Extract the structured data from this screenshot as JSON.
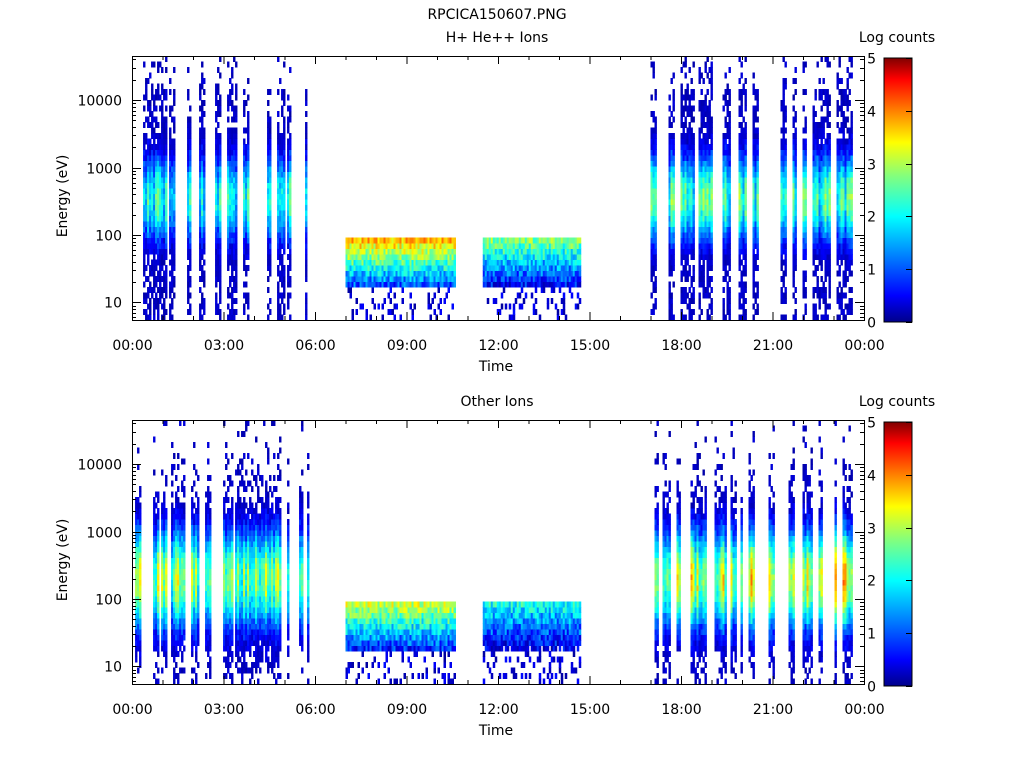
{
  "chart_data": {
    "type": "heatmap",
    "title": "RPCICA150607.PNG",
    "colormap": [
      "#00008b",
      "#0000ff",
      "#0080ff",
      "#00ffff",
      "#80ff80",
      "#ffff00",
      "#ff8000",
      "#ff0000",
      "#800000"
    ],
    "panels": [
      {
        "subtitle": "H+ He++ Ions",
        "xlabel": "Time",
        "ylabel": "Energy (eV)",
        "xticks": [
          "00:00",
          "03:00",
          "06:00",
          "09:00",
          "12:00",
          "15:00",
          "18:00",
          "21:00",
          "00:00"
        ],
        "xlim_hours": [
          0,
          24
        ],
        "yscale": "log",
        "ylim": [
          5.5,
          45000
        ],
        "yticks": [
          "10",
          "100",
          "1000",
          "10000"
        ],
        "colorbar": {
          "label": "Log counts",
          "ticks": [
            "0",
            "1",
            "2",
            "3",
            "4",
            "5"
          ],
          "range": [
            0,
            5
          ]
        },
        "data_intervals_hours": [
          [
            0.1,
            5.8
          ],
          [
            7.0,
            10.6
          ],
          [
            11.5,
            14.7
          ],
          [
            17.0,
            23.6
          ]
        ],
        "segments": [
          {
            "range_hours": [
              0.1,
              5.8
            ],
            "mode": "sparse_columns",
            "peak_energy_ev": 350,
            "peak_log_counts": 2.6
          },
          {
            "range_hours": [
              7.0,
              10.6
            ],
            "mode": "dense_band",
            "max_energy_ev": 100,
            "min_energy_ev": 18,
            "peak_log_counts": 4.2
          },
          {
            "range_hours": [
              11.5,
              14.7
            ],
            "mode": "dense_band",
            "max_energy_ev": 100,
            "min_energy_ev": 18,
            "peak_log_counts": 3.2
          },
          {
            "range_hours": [
              17.0,
              23.6
            ],
            "mode": "sparse_columns",
            "peak_energy_ev": 350,
            "peak_log_counts": 2.8
          }
        ]
      },
      {
        "subtitle": "Other Ions",
        "xlabel": "Time",
        "ylabel": "Energy (eV)",
        "xticks": [
          "00:00",
          "03:00",
          "06:00",
          "09:00",
          "12:00",
          "15:00",
          "18:00",
          "21:00",
          "00:00"
        ],
        "xlim_hours": [
          0,
          24
        ],
        "yscale": "log",
        "ylim": [
          5.5,
          45000
        ],
        "yticks": [
          "10",
          "100",
          "1000",
          "10000"
        ],
        "colorbar": {
          "label": "Log counts",
          "ticks": [
            "0",
            "1",
            "2",
            "3",
            "4",
            "5"
          ],
          "range": [
            0,
            5
          ]
        },
        "data_intervals_hours": [
          [
            0.1,
            5.8
          ],
          [
            7.0,
            10.6
          ],
          [
            11.5,
            14.7
          ],
          [
            17.0,
            23.6
          ]
        ],
        "segments": [
          {
            "range_hours": [
              0.1,
              5.8
            ],
            "mode": "broad_columns",
            "peak_energy_ev": 200,
            "peak_log_counts": 3.2
          },
          {
            "range_hours": [
              7.0,
              10.6
            ],
            "mode": "dense_band",
            "max_energy_ev": 100,
            "min_energy_ev": 18,
            "peak_log_counts": 3.6
          },
          {
            "range_hours": [
              11.5,
              14.7
            ],
            "mode": "dense_band",
            "max_energy_ev": 100,
            "min_energy_ev": 18,
            "peak_log_counts": 2.6
          },
          {
            "range_hours": [
              17.0,
              23.6
            ],
            "mode": "broad_columns",
            "peak_energy_ev": 200,
            "peak_log_counts": 3.8
          }
        ]
      }
    ]
  }
}
